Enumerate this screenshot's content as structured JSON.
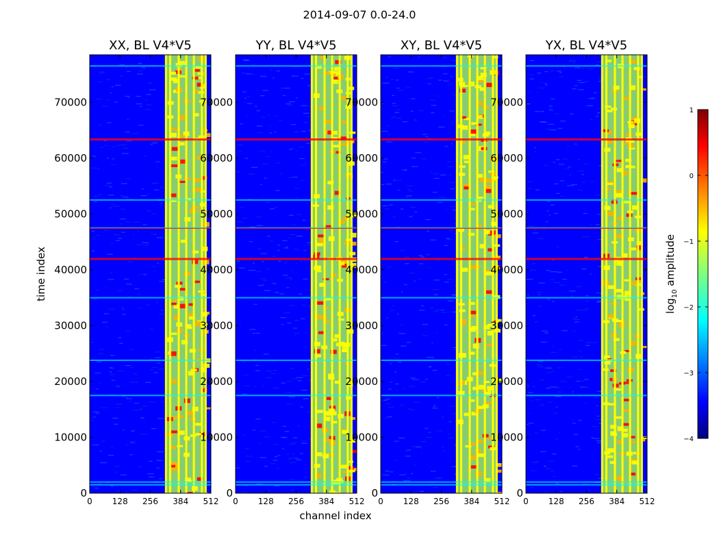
{
  "figure": {
    "suptitle": "2014-09-07 0.0-24.0",
    "xlabel": "channel index",
    "ylabel": "time index"
  },
  "colorbar": {
    "label_prefix": "log",
    "label_sub": "10",
    "label_suffix": " amplitude",
    "ticks": [
      "1",
      "0",
      "−1",
      "−2",
      "−3",
      "−4"
    ],
    "tick_values": [
      1,
      0,
      -1,
      -2,
      -3,
      -4
    ],
    "range": [
      -4,
      1
    ]
  },
  "chart_data": {
    "type": "heatmap",
    "xlim": [
      0,
      512
    ],
    "ylim": [
      0,
      78500
    ],
    "xticks": [
      0,
      128,
      256,
      384,
      512
    ],
    "xtick_labels": [
      "0",
      "128",
      "256",
      "384",
      "512"
    ],
    "yticks": [
      0,
      10000,
      20000,
      30000,
      40000,
      50000,
      60000,
      70000
    ],
    "ytick_labels": [
      "0",
      "10000",
      "20000",
      "30000",
      "40000",
      "50000",
      "60000",
      "70000"
    ],
    "color_scale": "jet, log10 amplitude from -4 to 1",
    "panels": [
      {
        "title": "XX, BL V4*V5"
      },
      {
        "title": "YY, BL V4*V5"
      },
      {
        "title": "XY, BL V4*V5"
      },
      {
        "title": "YX, BL V4*V5"
      }
    ],
    "rfi_band_channels": [
      322,
      490
    ],
    "strong_channel_columns": [
      322,
      340,
      376,
      408,
      440,
      474,
      490
    ],
    "horizontal_features_time": [
      1500,
      2000,
      17500,
      23800,
      35000,
      42000,
      47500,
      52500,
      63400,
      76500
    ],
    "colors": {
      "dark_blue": "#00007f",
      "blue": "#0000ff",
      "cyan": "#00ffff",
      "yellow": "#ffff00",
      "red": "#ff0000",
      "dark_red": "#7f0000"
    }
  }
}
